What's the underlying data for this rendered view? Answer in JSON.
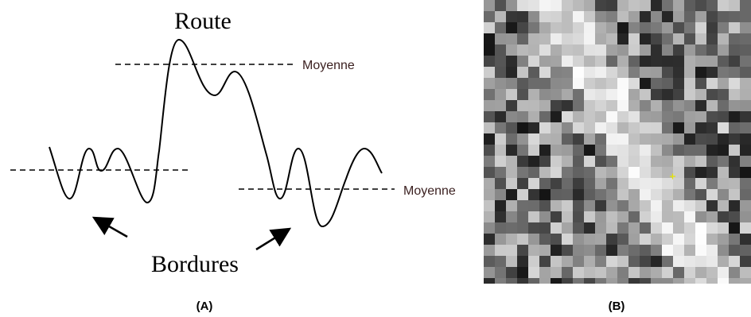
{
  "panel_a": {
    "title": "Route",
    "top_label": "Moyenne",
    "right_label": "Moyenne",
    "bottom_label": "Bordures",
    "caption": "(A)"
  },
  "panel_b": {
    "caption": "(B)"
  }
}
